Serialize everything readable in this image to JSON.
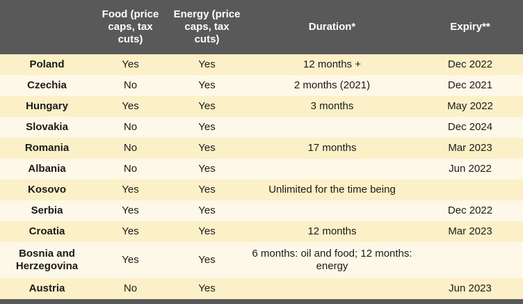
{
  "colors": {
    "header_bg": "#595959",
    "footer_bg": "#595959",
    "row_stripe_gold": "#FBF0C7",
    "row_stripe_cream": "#FDF8E7",
    "header_text": "#FFFFFF",
    "body_text": "#1A1A1A"
  },
  "chart_data": {
    "type": "table",
    "columns": [
      "",
      "Food (price caps, tax cuts)",
      "Energy (price caps, tax cuts)",
      "Duration*",
      "Expiry**"
    ],
    "rows": [
      {
        "country": "Poland",
        "food": "Yes",
        "energy": "Yes",
        "duration": "12 months +",
        "expiry": "Dec 2022"
      },
      {
        "country": "Czechia",
        "food": "No",
        "energy": "Yes",
        "duration": "2 months (2021)",
        "expiry": "Dec 2021"
      },
      {
        "country": "Hungary",
        "food": "Yes",
        "energy": "Yes",
        "duration": "3 months",
        "expiry": "May 2022"
      },
      {
        "country": "Slovakia",
        "food": "No",
        "energy": "Yes",
        "duration": "",
        "expiry": "Dec 2024"
      },
      {
        "country": "Romania",
        "food": "No",
        "energy": "Yes",
        "duration": "17 months",
        "expiry": "Mar 2023"
      },
      {
        "country": "Albania",
        "food": "No",
        "energy": "Yes",
        "duration": "",
        "expiry": "Jun 2022"
      },
      {
        "country": "Kosovo",
        "food": "Yes",
        "energy": "Yes",
        "duration": "Unlimited for the time being",
        "expiry": ""
      },
      {
        "country": "Serbia",
        "food": "Yes",
        "energy": "Yes",
        "duration": "",
        "expiry": "Dec 2022"
      },
      {
        "country": "Croatia",
        "food": "Yes",
        "energy": "Yes",
        "duration": "12 months",
        "expiry": "Mar 2023"
      },
      {
        "country": "Bosnia and Herzegovina",
        "food": "Yes",
        "energy": "Yes",
        "duration": "6 months: oil and food; 12 months: energy",
        "expiry": ""
      },
      {
        "country": "Austria",
        "food": "No",
        "energy": "Yes",
        "duration": "",
        "expiry": "Jun 2023"
      }
    ]
  }
}
